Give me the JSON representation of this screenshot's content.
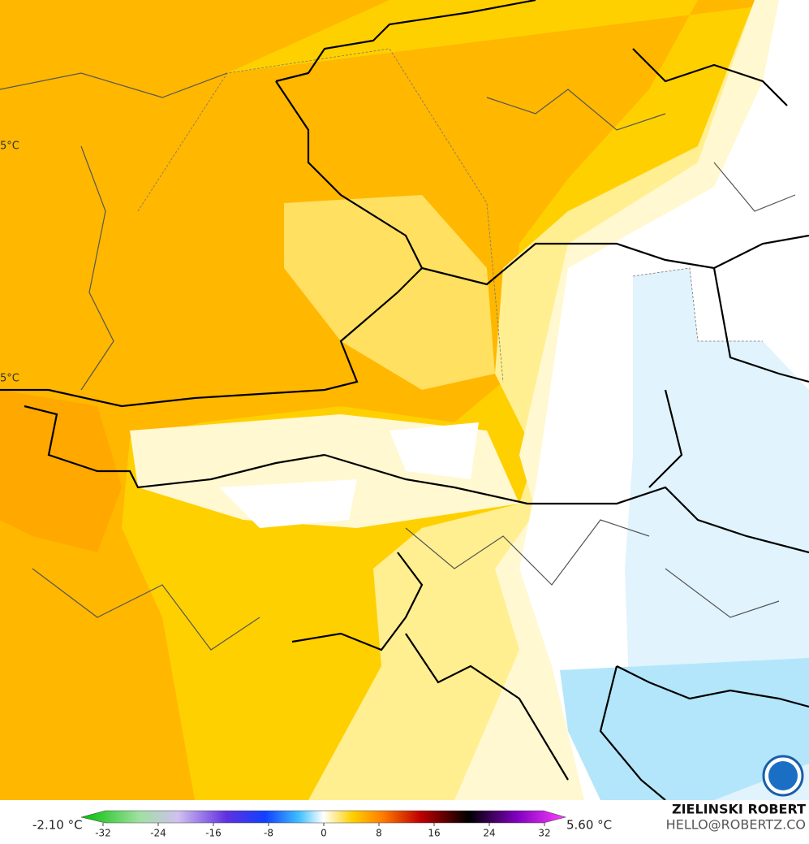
{
  "map": {
    "edge_labels": [
      "5°C",
      "5°C"
    ]
  },
  "colorbar": {
    "min_label": "-2.10 °C",
    "max_label": "5.60 °C",
    "ticks": [
      -32,
      -24,
      -16,
      -8,
      0,
      8,
      16,
      24,
      32
    ]
  },
  "credit": {
    "name": "ZIELINSKI ROBERT",
    "email": "HELLO@ROBERTZ.CO"
  }
}
